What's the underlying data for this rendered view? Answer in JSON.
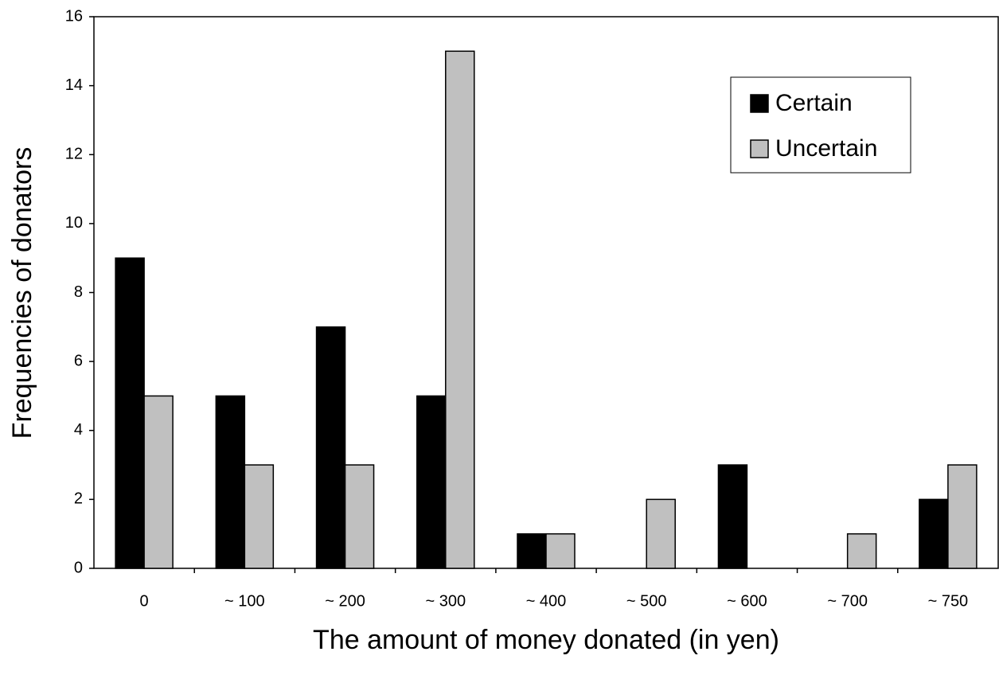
{
  "chart_data": {
    "type": "bar",
    "xlabel": "The amount of money donated (in yen)",
    "ylabel": "Frequencies of donators",
    "categories": [
      "0",
      "~ 100",
      "~ 200",
      "~ 300",
      "~ 400",
      "~ 500",
      "~ 600",
      "~ 700",
      "~ 750"
    ],
    "series": [
      {
        "name": "Certain",
        "color": "#000000",
        "values": [
          9,
          5,
          7,
          5,
          1,
          0,
          3,
          0,
          2
        ]
      },
      {
        "name": "Uncertain",
        "color": "#c0c0c0",
        "values": [
          5,
          3,
          3,
          15,
          1,
          2,
          0,
          1,
          3
        ]
      }
    ],
    "ylim": [
      0,
      16
    ],
    "yticks": [
      0,
      2,
      4,
      6,
      8,
      10,
      12,
      14,
      16
    ],
    "grid": false,
    "legend": "upper right"
  }
}
